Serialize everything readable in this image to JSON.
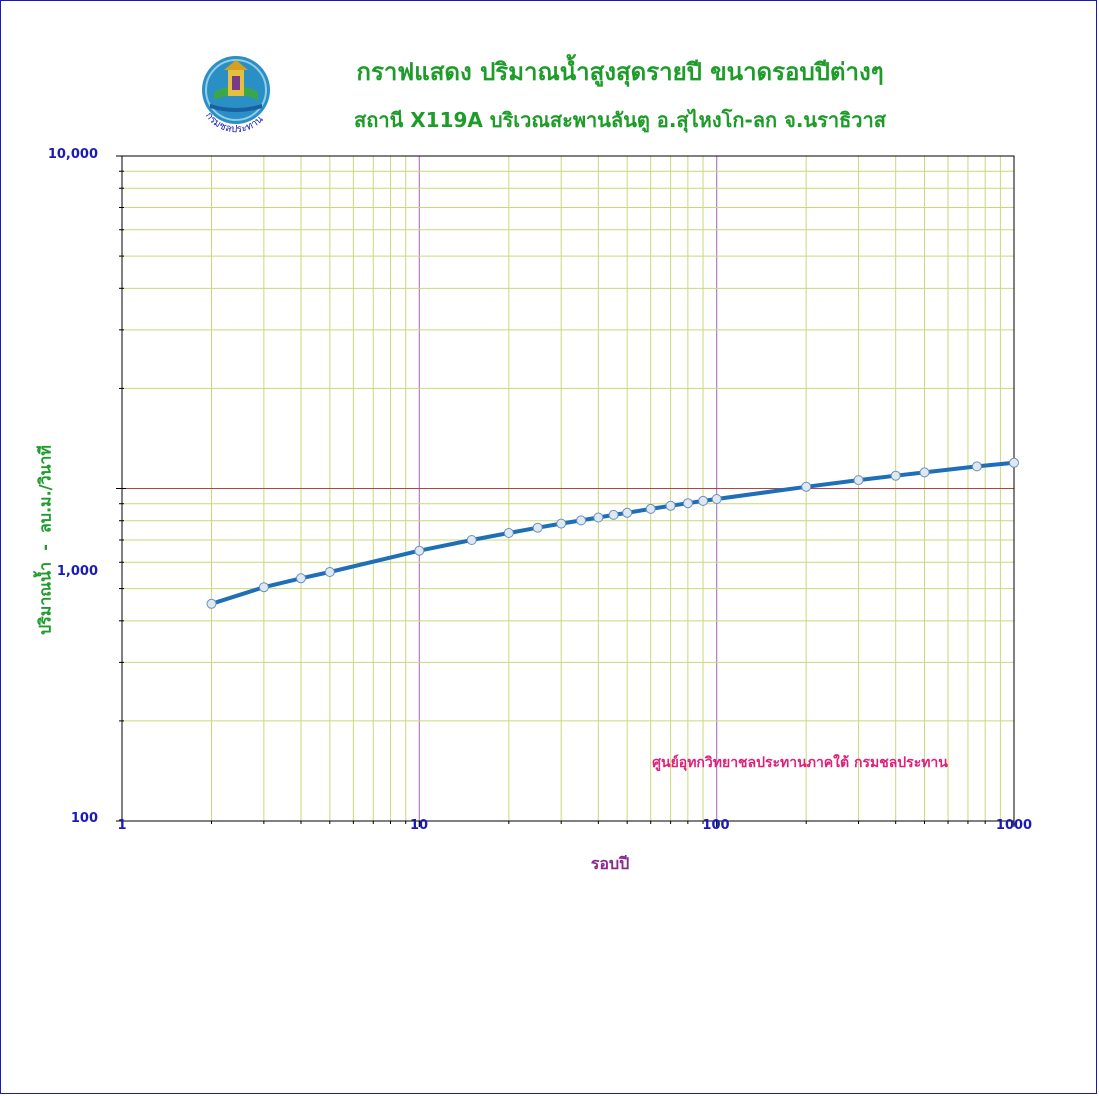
{
  "header": {
    "title": "กราฟแสดง ปริมาณน้ำสูงสุดรายปี ขนาดรอบปีต่างๆ",
    "subtitle": "สถานี X119A บริเวณสะพานลันตู อ.สุไหงโก-ลก จ.นราธิวาส",
    "logo_text": "กรมชลประทาน"
  },
  "credit": "ศูนย์อุทกวิทยาชลประทานภาคใต้ กรมชลประทาน",
  "colors": {
    "curve": "#1f6fb8",
    "marker_fill": "#dde8f5",
    "grid_major_x": "#b57fc4",
    "grid_major_y": "#b24444",
    "grid_minor": "#c9d97a",
    "frame": "#1a1ab8"
  },
  "chart_data": {
    "type": "line",
    "title": "กราฟแสดง ปริมาณน้ำสูงสุดรายปี ขนาดรอบปีต่างๆ",
    "subtitle": "สถานี X119A บริเวณสะพานลันตู อ.สุไหงโก-ลก จ.นราธิวาส",
    "xlabel": "รอบปี",
    "ylabel": "ปริมาณน้ำ  -  ลบ.ม./วินาที",
    "x_scale": "log",
    "y_scale": "log",
    "xlim": [
      1,
      1000
    ],
    "ylim": [
      100,
      10000
    ],
    "x_tick_labels": [
      "1",
      "10",
      "100",
      "1000"
    ],
    "y_tick_labels": [
      "10,000",
      "1,000",
      "100"
    ],
    "grid": true,
    "series": [
      {
        "x": [
          2,
          3,
          4,
          5,
          10,
          15,
          20,
          25,
          30,
          35,
          40,
          45,
          50,
          60,
          70,
          80,
          90,
          100,
          200,
          300,
          400,
          500,
          750,
          1000
        ],
        "y": [
          450,
          505,
          537,
          561,
          650,
          700,
          735,
          762,
          784,
          802,
          818,
          833,
          845,
          868,
          887,
          903,
          918,
          930,
          1012,
          1060,
          1093,
          1118,
          1165,
          1195
        ]
      }
    ]
  }
}
